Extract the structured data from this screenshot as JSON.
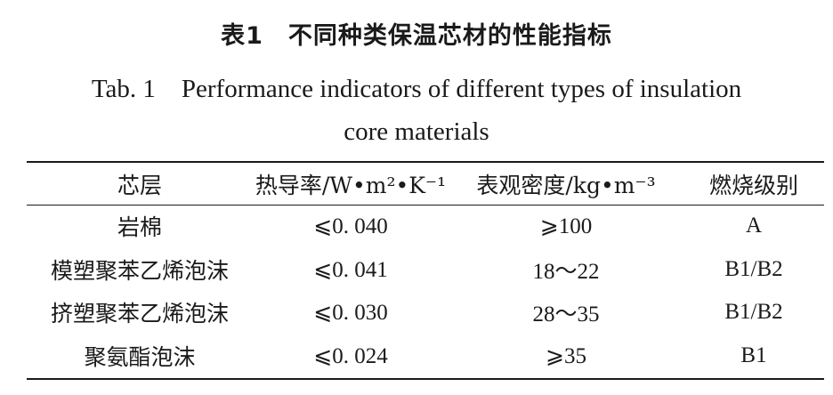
{
  "title_cn": "表1　不同种类保温芯材的性能指标",
  "title_en": "Tab. 1　Performance indicators of different types of insulation\ncore materials",
  "table": {
    "headers": [
      "芯层",
      "热导率/W•m²•K⁻¹",
      "表观密度/kg•m⁻³",
      "燃烧级别"
    ],
    "rows": [
      [
        "岩棉",
        "⩽0. 040",
        "⩾100",
        "A"
      ],
      [
        "模塑聚苯乙烯泡沫",
        "⩽0. 041",
        "18～22",
        "B1/B2"
      ],
      [
        "挤塑聚苯乙烯泡沫",
        "⩽0. 030",
        "28～35",
        "B1/B2"
      ],
      [
        "聚氨酯泡沫",
        "⩽0. 024",
        "⩾35",
        "B1"
      ]
    ]
  }
}
